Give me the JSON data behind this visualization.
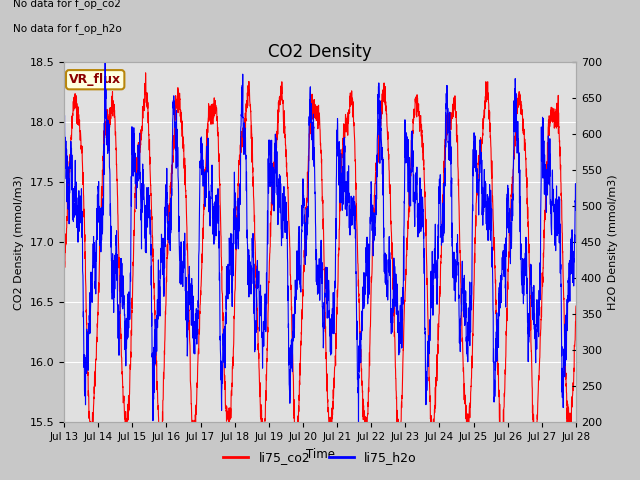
{
  "title": "CO2 Density",
  "xlabel": "Time",
  "ylabel_left": "CO2 Density (mmol/m3)",
  "ylabel_right": "H2O Density (mmol/m3)",
  "ylim_left": [
    15.5,
    18.5
  ],
  "ylim_right": [
    200,
    700
  ],
  "yticks_left": [
    15.5,
    16.0,
    16.5,
    17.0,
    17.5,
    18.0,
    18.5
  ],
  "yticks_right": [
    200,
    250,
    300,
    350,
    400,
    450,
    500,
    550,
    600,
    650,
    700
  ],
  "xtick_labels": [
    "Jul 13",
    "Jul 14",
    "Jul 15",
    "Jul 16",
    "Jul 17",
    "Jul 18",
    "Jul 19",
    "Jul 20",
    "Jul 21",
    "Jul 22",
    "Jul 23",
    "Jul 24",
    "Jul 25",
    "Jul 26",
    "Jul 27",
    "Jul 28"
  ],
  "top_text_line1": "No data for f_op_co2",
  "top_text_line2": "No data for f_op_h2o",
  "vr_flux_label": "VR_flux",
  "bg_color": "#c8c8c8",
  "plot_bg_color": "#e0e0e0",
  "legend_entries": [
    "li75_co2",
    "li75_h2o"
  ],
  "legend_colors": [
    "red",
    "blue"
  ],
  "co2_color": "red",
  "h2o_color": "blue",
  "seed": 42
}
